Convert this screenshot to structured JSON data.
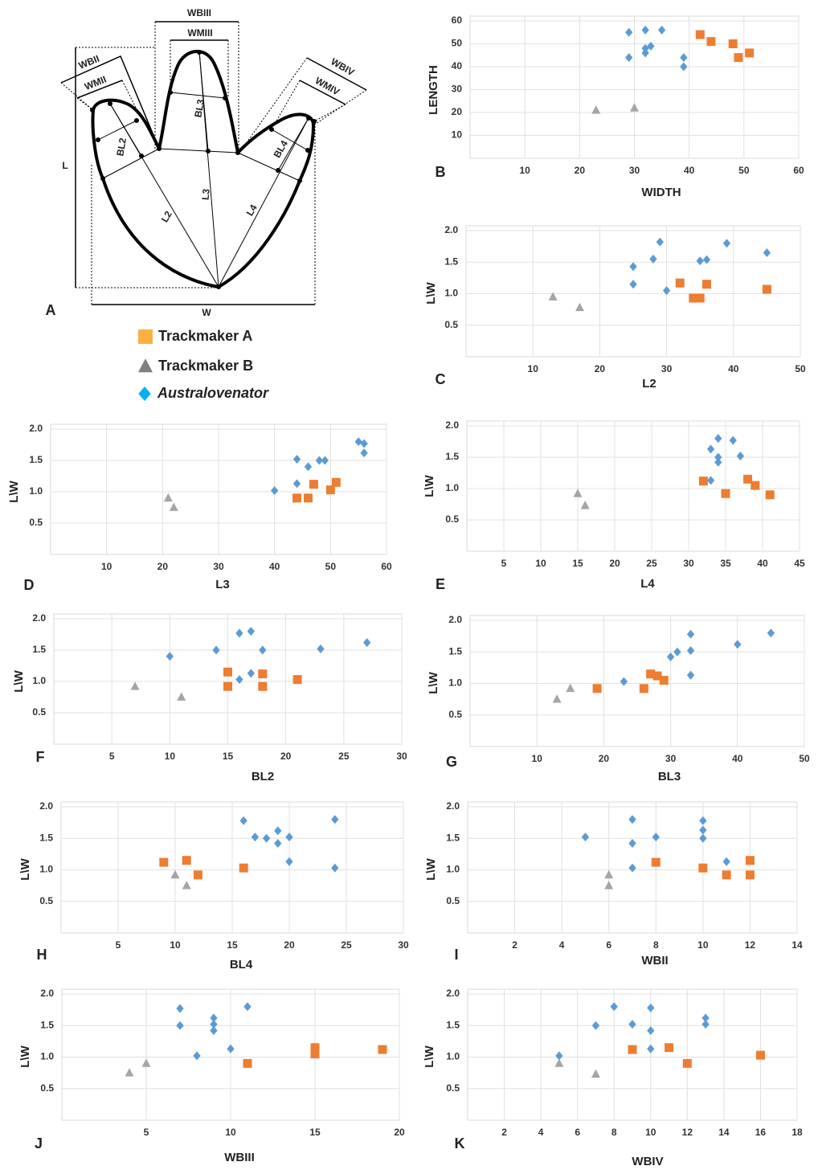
{
  "diagram": {
    "panel": "A",
    "labels": [
      "WBIII",
      "WMIII",
      "WBII",
      "WMII",
      "WBIV",
      "WMIV",
      "BL3",
      "BL2",
      "BL4",
      "L3",
      "L2",
      "L4",
      "L",
      "W"
    ]
  },
  "legend": [
    {
      "name": "Trackmaker A",
      "color": "#fbb040",
      "marker": "square"
    },
    {
      "name": "Trackmaker B",
      "color": "#7f7f7f",
      "marker": "triangle"
    },
    {
      "name": "Australovenator",
      "color": "#00b0f0",
      "marker": "diamond",
      "italic": true
    }
  ],
  "chart_data": [
    {
      "type": "scatter",
      "label": "B",
      "x_label": "WIDTH",
      "y_label": "LENGTH",
      "xlim": [
        0,
        60
      ],
      "xticks": [
        10,
        20,
        30,
        40,
        50,
        60
      ],
      "ylim": [
        0,
        60
      ],
      "yticks": [
        10,
        20,
        30,
        40,
        50,
        60
      ],
      "grid": true,
      "series": [
        {
          "marker": "diamond",
          "color": "#5b9bd5",
          "x": [
            29,
            32,
            35,
            29,
            32,
            32,
            33,
            39,
            39
          ],
          "values": [
            55,
            56,
            56,
            44,
            48,
            46,
            49,
            44,
            40
          ]
        },
        {
          "marker": "square",
          "color": "#ed7d31",
          "x": [
            42,
            44,
            48,
            49,
            51
          ],
          "values": [
            54,
            51,
            50,
            44,
            46
          ]
        },
        {
          "marker": "triangle",
          "color": "#a5a5a5",
          "x": [
            23,
            30
          ],
          "values": [
            21,
            22
          ]
        }
      ]
    },
    {
      "type": "scatter",
      "label": "C",
      "x_label": "L2",
      "y_label": "L\\W",
      "xlim": [
        0,
        50
      ],
      "xticks": [
        10,
        20,
        30,
        40,
        50
      ],
      "ylim": [
        0,
        2
      ],
      "yticks": [
        0.5,
        {
          "value": 1,
          "label": "1.0"
        },
        1.5,
        {
          "value": 2,
          "label": "2.0"
        }
      ],
      "grid": true,
      "series": [
        {
          "marker": "diamond",
          "color": "#5b9bd5",
          "x": [
            25,
            25,
            28,
            29,
            30,
            35,
            36,
            39,
            45
          ],
          "values": [
            1.43,
            1.15,
            1.55,
            1.82,
            1.05,
            1.52,
            1.54,
            1.8,
            1.65
          ]
        },
        {
          "marker": "square",
          "color": "#ed7d31",
          "x": [
            32,
            34,
            35,
            36,
            45
          ],
          "values": [
            1.17,
            0.93,
            0.93,
            1.15,
            1.07
          ]
        },
        {
          "marker": "triangle",
          "color": "#a5a5a5",
          "x": [
            13,
            17
          ],
          "values": [
            0.95,
            0.78
          ]
        }
      ]
    },
    {
      "type": "scatter",
      "label": "D",
      "x_label": "L3",
      "y_label": "L\\W",
      "xlim": [
        0,
        60
      ],
      "xticks": [
        10,
        20,
        30,
        40,
        50,
        60
      ],
      "ylim": [
        0,
        2
      ],
      "yticks": [
        0.5,
        {
          "value": 1,
          "label": "1.0"
        },
        1.5,
        {
          "value": 2,
          "label": "2.0"
        }
      ],
      "grid": true,
      "series": [
        {
          "marker": "diamond",
          "color": "#5b9bd5",
          "x": [
            40,
            44,
            44,
            46,
            48,
            49,
            55,
            56,
            56
          ],
          "values": [
            1.02,
            1.52,
            1.13,
            1.4,
            1.5,
            1.5,
            1.8,
            1.77,
            1.62
          ]
        },
        {
          "marker": "square",
          "color": "#ed7d31",
          "x": [
            44,
            46,
            47,
            50,
            51
          ],
          "values": [
            0.9,
            0.9,
            1.12,
            1.03,
            1.15
          ]
        },
        {
          "marker": "triangle",
          "color": "#a5a5a5",
          "x": [
            21,
            22
          ],
          "values": [
            0.9,
            0.75
          ]
        }
      ]
    },
    {
      "type": "scatter",
      "label": "E",
      "x_label": "L4",
      "y_label": "L\\W",
      "xlim": [
        0,
        45
      ],
      "xticks": [
        5,
        10,
        15,
        20,
        25,
        30,
        35,
        40,
        45
      ],
      "ylim": [
        0,
        2
      ],
      "yticks": [
        0.5,
        {
          "value": 1,
          "label": "1.0"
        },
        1.5,
        {
          "value": 2,
          "label": "2.0"
        }
      ],
      "grid": true,
      "series": [
        {
          "marker": "diamond",
          "color": "#5b9bd5",
          "x": [
            33,
            33,
            34,
            34,
            34,
            36,
            37
          ],
          "values": [
            1.13,
            1.63,
            1.8,
            1.5,
            1.42,
            1.77,
            1.52
          ]
        },
        {
          "marker": "square",
          "color": "#ed7d31",
          "x": [
            32,
            35,
            38,
            39,
            41
          ],
          "values": [
            1.12,
            0.92,
            1.15,
            1.05,
            0.9
          ]
        },
        {
          "marker": "triangle",
          "color": "#a5a5a5",
          "x": [
            15,
            16
          ],
          "values": [
            0.92,
            0.73
          ]
        }
      ]
    },
    {
      "type": "scatter",
      "label": "F",
      "x_label": "BL2",
      "y_label": "L\\W",
      "xlim": [
        0,
        30
      ],
      "xticks": [
        5,
        10,
        15,
        20,
        25,
        30
      ],
      "ylim": [
        0,
        2
      ],
      "yticks": [
        0.5,
        {
          "value": 1,
          "label": "1.0"
        },
        1.5,
        {
          "value": 2,
          "label": "2.0"
        }
      ],
      "grid": true,
      "series": [
        {
          "marker": "diamond",
          "color": "#5b9bd5",
          "x": [
            10,
            14,
            16,
            16,
            17,
            17,
            18,
            23,
            27
          ],
          "values": [
            1.4,
            1.5,
            1.77,
            1.03,
            1.8,
            1.13,
            1.5,
            1.52,
            1.62
          ]
        },
        {
          "marker": "square",
          "color": "#ed7d31",
          "x": [
            15,
            15,
            18,
            18,
            21
          ],
          "values": [
            1.15,
            0.92,
            1.12,
            0.92,
            1.03
          ]
        },
        {
          "marker": "triangle",
          "color": "#a5a5a5",
          "x": [
            7,
            11
          ],
          "values": [
            0.92,
            0.75
          ]
        }
      ]
    },
    {
      "type": "scatter",
      "label": "G",
      "x_label": "BL3",
      "y_label": "L\\W",
      "xlim": [
        0,
        50
      ],
      "xticks": [
        10,
        20,
        30,
        40,
        50
      ],
      "ylim": [
        0,
        2
      ],
      "yticks": [
        0.5,
        {
          "value": 1,
          "label": "1.0"
        },
        1.5,
        {
          "value": 2,
          "label": "2.0"
        }
      ],
      "grid": true,
      "series": [
        {
          "marker": "diamond",
          "color": "#5b9bd5",
          "x": [
            23,
            30,
            31,
            33,
            33,
            33,
            40,
            45
          ],
          "values": [
            1.03,
            1.42,
            1.5,
            1.78,
            1.52,
            1.13,
            1.62,
            1.8
          ]
        },
        {
          "marker": "square",
          "color": "#ed7d31",
          "x": [
            19,
            26,
            27,
            28,
            29
          ],
          "values": [
            0.92,
            0.92,
            1.15,
            1.12,
            1.05
          ]
        },
        {
          "marker": "triangle",
          "color": "#a5a5a5",
          "x": [
            13,
            15
          ],
          "values": [
            0.75,
            0.92
          ]
        }
      ]
    },
    {
      "type": "scatter",
      "label": "H",
      "x_label": "BL4",
      "y_label": "L\\W",
      "xlim": [
        0,
        30
      ],
      "xticks": [
        5,
        10,
        15,
        20,
        25,
        30
      ],
      "ylim": [
        0,
        2
      ],
      "yticks": [
        0.5,
        {
          "value": 1,
          "label": "1.0"
        },
        1.5,
        {
          "value": 2,
          "label": "2.0"
        }
      ],
      "grid": true,
      "series": [
        {
          "marker": "diamond",
          "color": "#5b9bd5",
          "x": [
            16,
            17,
            18,
            19,
            19,
            20,
            20,
            24,
            24
          ],
          "values": [
            1.78,
            1.52,
            1.5,
            1.62,
            1.42,
            1.52,
            1.13,
            1.8,
            1.03
          ]
        },
        {
          "marker": "square",
          "color": "#ed7d31",
          "x": [
            9,
            11,
            12,
            16
          ],
          "values": [
            1.12,
            1.15,
            0.92,
            1.03
          ]
        },
        {
          "marker": "triangle",
          "color": "#a5a5a5",
          "x": [
            10,
            11
          ],
          "values": [
            0.92,
            0.75
          ]
        }
      ]
    },
    {
      "type": "scatter",
      "label": "I",
      "x_label": "WBII",
      "y_label": "L\\W",
      "xlim": [
        0,
        14
      ],
      "xticks": [
        2,
        4,
        6,
        8,
        10,
        12,
        14
      ],
      "ylim": [
        0,
        2
      ],
      "yticks": [
        0.5,
        {
          "value": 1,
          "label": "1.0"
        },
        1.5,
        {
          "value": 2,
          "label": "2.0"
        }
      ],
      "grid": true,
      "series": [
        {
          "marker": "diamond",
          "color": "#5b9bd5",
          "x": [
            5,
            7,
            7,
            7,
            8,
            10,
            10,
            10,
            11
          ],
          "values": [
            1.52,
            1.8,
            1.42,
            1.03,
            1.52,
            1.78,
            1.63,
            1.5,
            1.13
          ]
        },
        {
          "marker": "square",
          "color": "#ed7d31",
          "x": [
            8,
            10,
            11,
            12,
            12
          ],
          "values": [
            1.12,
            1.03,
            0.92,
            1.15,
            0.92
          ]
        },
        {
          "marker": "triangle",
          "color": "#a5a5a5",
          "x": [
            6,
            6
          ],
          "values": [
            0.92,
            0.75
          ]
        }
      ]
    },
    {
      "type": "scatter",
      "label": "J",
      "x_label": "WBIII",
      "y_label": "L\\W",
      "xlim": [
        0,
        20
      ],
      "xticks": [
        5,
        10,
        15,
        20
      ],
      "ylim": [
        0,
        2
      ],
      "yticks": [
        0.5,
        {
          "value": 1,
          "label": "1.0"
        },
        1.5,
        {
          "value": 2,
          "label": "2.0"
        }
      ],
      "grid": true,
      "series": [
        {
          "marker": "diamond",
          "color": "#5b9bd5",
          "x": [
            7,
            7,
            8,
            9,
            9,
            9,
            10,
            11
          ],
          "values": [
            1.77,
            1.5,
            1.02,
            1.62,
            1.52,
            1.42,
            1.13,
            1.8
          ]
        },
        {
          "marker": "square",
          "color": "#ed7d31",
          "x": [
            11,
            15,
            15,
            19
          ],
          "values": [
            0.9,
            1.15,
            1.05,
            1.12
          ]
        },
        {
          "marker": "triangle",
          "color": "#a5a5a5",
          "x": [
            4,
            5
          ],
          "values": [
            0.75,
            0.9
          ]
        }
      ]
    },
    {
      "type": "scatter",
      "label": "K",
      "x_label": "WBIV",
      "y_label": "L\\W",
      "xlim": [
        0,
        18
      ],
      "xticks": [
        2,
        4,
        6,
        8,
        10,
        12,
        14,
        16,
        18
      ],
      "ylim": [
        0,
        2
      ],
      "yticks": [
        0.5,
        {
          "value": 1,
          "label": "1.0"
        },
        1.5,
        {
          "value": 2,
          "label": "2.0"
        }
      ],
      "grid": true,
      "series": [
        {
          "marker": "diamond",
          "color": "#5b9bd5",
          "x": [
            5,
            7,
            8,
            9,
            10,
            10,
            10,
            13,
            13
          ],
          "values": [
            1.02,
            1.5,
            1.8,
            1.52,
            1.78,
            1.42,
            1.13,
            1.62,
            1.52
          ]
        },
        {
          "marker": "square",
          "color": "#ed7d31",
          "x": [
            9,
            11,
            12,
            16
          ],
          "values": [
            1.12,
            1.15,
            0.9,
            1.03
          ]
        },
        {
          "marker": "triangle",
          "color": "#a5a5a5",
          "x": [
            5,
            7
          ],
          "values": [
            0.9,
            0.73
          ]
        }
      ]
    }
  ]
}
